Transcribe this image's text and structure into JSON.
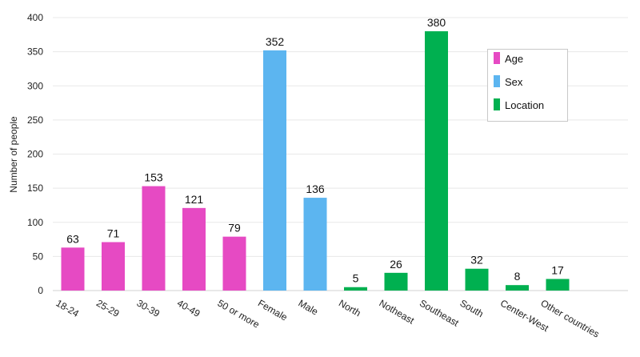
{
  "chart_data": {
    "type": "bar",
    "title": "",
    "xlabel": "",
    "ylabel": "Number of people",
    "ylim": [
      0,
      400
    ],
    "yticks": [
      0,
      50,
      100,
      150,
      200,
      250,
      300,
      350,
      400
    ],
    "grid": true,
    "legend_position": "top-right",
    "categories": [
      "18-24",
      "25-29",
      "30-39",
      "40-49",
      "50 or more",
      "Female",
      "Male",
      "North",
      "Notheast",
      "Southeast",
      "South",
      "Center-West",
      "Other countries"
    ],
    "values": [
      63,
      71,
      153,
      121,
      79,
      352,
      136,
      5,
      26,
      380,
      32,
      8,
      17
    ],
    "groups": [
      "Age",
      "Age",
      "Age",
      "Age",
      "Age",
      "Sex",
      "Sex",
      "Location",
      "Location",
      "Location",
      "Location",
      "Location",
      "Location"
    ],
    "legend": [
      {
        "name": "Age",
        "color": "#e64ac3"
      },
      {
        "name": "Sex",
        "color": "#5cb5f0"
      },
      {
        "name": "Location",
        "color": "#00b050"
      }
    ]
  }
}
